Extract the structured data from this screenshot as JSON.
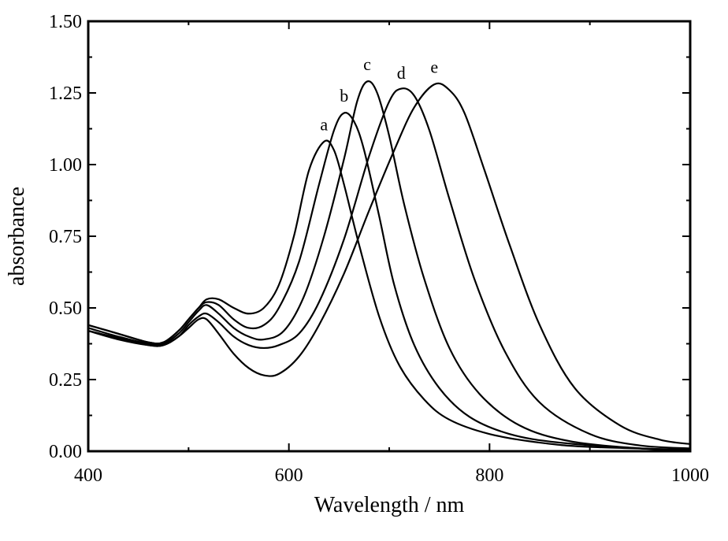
{
  "chart_data": {
    "type": "line",
    "xlabel": "Wavelength / nm",
    "ylabel": "absorbance",
    "xlim": [
      400,
      1000
    ],
    "ylim": [
      0.0,
      1.5
    ],
    "x_ticks": [
      400,
      600,
      800,
      1000
    ],
    "x_tick_labels": [
      "400",
      "600",
      "800",
      "1000"
    ],
    "y_ticks": [
      0.0,
      0.25,
      0.5,
      0.75,
      1.0,
      1.25,
      1.5
    ],
    "y_tick_labels": [
      "0.00",
      "0.25",
      "0.50",
      "0.75",
      "1.00",
      "1.25",
      "1.50"
    ],
    "grid": false,
    "series": [
      {
        "name": "a",
        "points": [
          [
            400,
            0.44
          ],
          [
            430,
            0.41
          ],
          [
            460,
            0.38
          ],
          [
            475,
            0.38
          ],
          [
            490,
            0.42
          ],
          [
            500,
            0.46
          ],
          [
            510,
            0.5
          ],
          [
            518,
            0.53
          ],
          [
            530,
            0.53
          ],
          [
            545,
            0.5
          ],
          [
            560,
            0.48
          ],
          [
            575,
            0.5
          ],
          [
            590,
            0.58
          ],
          [
            605,
            0.75
          ],
          [
            620,
            0.98
          ],
          [
            635,
            1.08
          ],
          [
            645,
            1.05
          ],
          [
            655,
            0.93
          ],
          [
            670,
            0.72
          ],
          [
            690,
            0.47
          ],
          [
            710,
            0.3
          ],
          [
            735,
            0.18
          ],
          [
            760,
            0.11
          ],
          [
            800,
            0.06
          ],
          [
            850,
            0.03
          ],
          [
            900,
            0.015
          ],
          [
            1000,
            0.005
          ]
        ]
      },
      {
        "name": "b",
        "points": [
          [
            400,
            0.44
          ],
          [
            430,
            0.41
          ],
          [
            460,
            0.38
          ],
          [
            475,
            0.38
          ],
          [
            490,
            0.42
          ],
          [
            500,
            0.46
          ],
          [
            510,
            0.5
          ],
          [
            518,
            0.52
          ],
          [
            530,
            0.51
          ],
          [
            545,
            0.46
          ],
          [
            560,
            0.43
          ],
          [
            575,
            0.44
          ],
          [
            590,
            0.5
          ],
          [
            610,
            0.66
          ],
          [
            630,
            0.93
          ],
          [
            645,
            1.12
          ],
          [
            655,
            1.18
          ],
          [
            665,
            1.15
          ],
          [
            675,
            1.05
          ],
          [
            690,
            0.82
          ],
          [
            705,
            0.58
          ],
          [
            725,
            0.37
          ],
          [
            750,
            0.22
          ],
          [
            780,
            0.12
          ],
          [
            820,
            0.06
          ],
          [
            870,
            0.03
          ],
          [
            950,
            0.01
          ],
          [
            1000,
            0.005
          ]
        ]
      },
      {
        "name": "c",
        "points": [
          [
            400,
            0.43
          ],
          [
            430,
            0.4
          ],
          [
            460,
            0.375
          ],
          [
            475,
            0.375
          ],
          [
            490,
            0.41
          ],
          [
            500,
            0.45
          ],
          [
            510,
            0.49
          ],
          [
            518,
            0.51
          ],
          [
            530,
            0.48
          ],
          [
            545,
            0.43
          ],
          [
            560,
            0.4
          ],
          [
            575,
            0.39
          ],
          [
            595,
            0.42
          ],
          [
            615,
            0.54
          ],
          [
            635,
            0.75
          ],
          [
            655,
            1.02
          ],
          [
            668,
            1.22
          ],
          [
            678,
            1.29
          ],
          [
            688,
            1.25
          ],
          [
            700,
            1.1
          ],
          [
            715,
            0.86
          ],
          [
            735,
            0.6
          ],
          [
            760,
            0.36
          ],
          [
            790,
            0.2
          ],
          [
            830,
            0.09
          ],
          [
            880,
            0.035
          ],
          [
            950,
            0.01
          ],
          [
            1000,
            0.005
          ]
        ]
      },
      {
        "name": "d",
        "points": [
          [
            400,
            0.42
          ],
          [
            430,
            0.395
          ],
          [
            460,
            0.37
          ],
          [
            475,
            0.37
          ],
          [
            490,
            0.4
          ],
          [
            500,
            0.44
          ],
          [
            510,
            0.47
          ],
          [
            518,
            0.48
          ],
          [
            530,
            0.45
          ],
          [
            545,
            0.4
          ],
          [
            560,
            0.37
          ],
          [
            575,
            0.36
          ],
          [
            590,
            0.37
          ],
          [
            610,
            0.41
          ],
          [
            630,
            0.52
          ],
          [
            655,
            0.74
          ],
          [
            680,
            1.03
          ],
          [
            700,
            1.22
          ],
          [
            712,
            1.265
          ],
          [
            725,
            1.24
          ],
          [
            740,
            1.12
          ],
          [
            760,
            0.88
          ],
          [
            785,
            0.6
          ],
          [
            815,
            0.35
          ],
          [
            850,
            0.17
          ],
          [
            900,
            0.06
          ],
          [
            950,
            0.02
          ],
          [
            1000,
            0.01
          ]
        ]
      },
      {
        "name": "e",
        "points": [
          [
            400,
            0.42
          ],
          [
            430,
            0.39
          ],
          [
            460,
            0.37
          ],
          [
            475,
            0.37
          ],
          [
            490,
            0.4
          ],
          [
            500,
            0.43
          ],
          [
            510,
            0.46
          ],
          [
            518,
            0.46
          ],
          [
            530,
            0.41
          ],
          [
            545,
            0.34
          ],
          [
            560,
            0.29
          ],
          [
            575,
            0.265
          ],
          [
            590,
            0.27
          ],
          [
            610,
            0.33
          ],
          [
            630,
            0.44
          ],
          [
            655,
            0.62
          ],
          [
            680,
            0.84
          ],
          [
            705,
            1.05
          ],
          [
            725,
            1.2
          ],
          [
            745,
            1.28
          ],
          [
            760,
            1.26
          ],
          [
            775,
            1.18
          ],
          [
            795,
            0.98
          ],
          [
            820,
            0.72
          ],
          [
            850,
            0.44
          ],
          [
            885,
            0.22
          ],
          [
            930,
            0.09
          ],
          [
            970,
            0.04
          ],
          [
            1000,
            0.025
          ]
        ]
      }
    ],
    "curve_labels": [
      {
        "text": "a",
        "x": 635,
        "y": 1.12
      },
      {
        "text": "b",
        "x": 655,
        "y": 1.22
      },
      {
        "text": "c",
        "x": 678,
        "y": 1.33
      },
      {
        "text": "d",
        "x": 712,
        "y": 1.3
      },
      {
        "text": "e",
        "x": 745,
        "y": 1.32
      }
    ]
  }
}
